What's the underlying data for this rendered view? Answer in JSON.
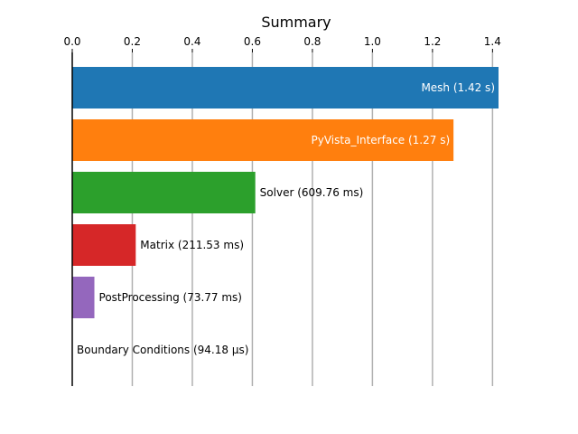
{
  "chart_data": {
    "type": "bar",
    "orientation": "horizontal",
    "title": "Summary",
    "xlabel": "",
    "ylabel": "",
    "xlim": [
      0,
      1.42
    ],
    "xticks": [
      0.0,
      0.2,
      0.4,
      0.6,
      0.8,
      1.0,
      1.2,
      1.4
    ],
    "xtick_labels": [
      "0.0",
      "0.2",
      "0.4",
      "0.6",
      "0.8",
      "1.0",
      "1.2",
      "1.4"
    ],
    "x_axis_position": "top",
    "grid": "vertical",
    "categories": [
      "Mesh",
      "PyVista_Interface",
      "Solver",
      "Matrix",
      "PostProcessing",
      "Boundary Conditions"
    ],
    "values": [
      1.42,
      1.27,
      0.60976,
      0.21153,
      0.07377,
      9.418e-05
    ],
    "labels": [
      "Mesh (1.42 s)",
      "PyVista_Interface (1.27 s)",
      "Solver (609.76 ms)",
      "Matrix (211.53 ms)",
      "PostProcessing (73.77 ms)",
      "Boundary Conditions (94.18 µs)"
    ],
    "label_inside": [
      true,
      true,
      false,
      false,
      false,
      false
    ],
    "colors": [
      "#1f77b4",
      "#ff7f0e",
      "#2ca02c",
      "#d62728",
      "#9467bd",
      "#8c564b"
    ]
  }
}
